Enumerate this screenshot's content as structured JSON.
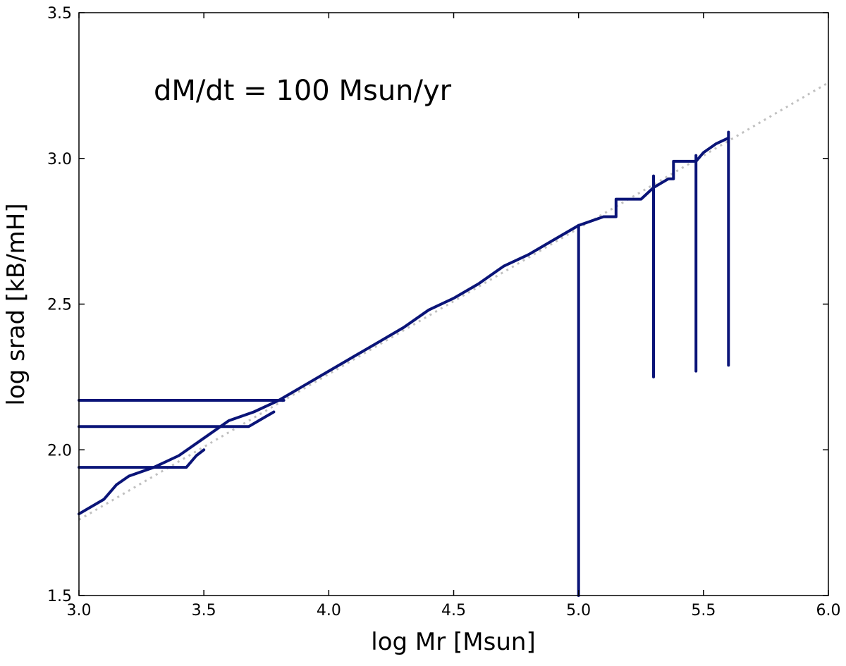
{
  "chart_data": {
    "type": "line",
    "title": "",
    "annotation": "dM/dt = 100 Msun/yr",
    "xlabel": "log Mr [Msun]",
    "ylabel": "log srad [kB/mH]",
    "xlim": [
      3.0,
      6.0
    ],
    "ylim": [
      1.5,
      3.5
    ],
    "xticks": [
      "3.0",
      "3.5",
      "4.0",
      "4.5",
      "5.0",
      "5.5",
      "6.0"
    ],
    "yticks": [
      "1.5",
      "2.0",
      "2.5",
      "3.0",
      "3.5"
    ],
    "grid": false,
    "legend": "none",
    "colors": {
      "profile": "#0a1478",
      "reference": "#c0c0c0"
    },
    "reference_line": {
      "style": "dotted",
      "x": [
        3.0,
        6.0
      ],
      "y": [
        1.76,
        3.26
      ]
    },
    "series": [
      {
        "style": "solid",
        "segments": [
          {
            "x": [
              3.0,
              3.1,
              3.15,
              3.2,
              3.3,
              3.4,
              3.5,
              3.6,
              3.7,
              3.8,
              3.9,
              4.0,
              4.1,
              4.2,
              4.3,
              4.4,
              4.5,
              4.6,
              4.7,
              4.8,
              4.9,
              5.0
            ],
            "y": [
              1.78,
              1.83,
              1.88,
              1.91,
              1.94,
              1.98,
              2.04,
              2.1,
              2.13,
              2.17,
              2.22,
              2.27,
              2.32,
              2.37,
              2.42,
              2.48,
              2.52,
              2.57,
              2.63,
              2.67,
              2.72,
              2.77
            ]
          },
          {
            "x": [
              5.0,
              5.0
            ],
            "y": [
              2.77,
              1.5
            ]
          },
          {
            "x": [
              5.0,
              5.1,
              5.15,
              5.15,
              5.25,
              5.3
            ],
            "y": [
              2.77,
              2.8,
              2.8,
              2.86,
              2.86,
              2.9
            ]
          },
          {
            "x": [
              5.3,
              5.3
            ],
            "y": [
              2.94,
              2.25
            ]
          },
          {
            "x": [
              5.3,
              5.36,
              5.38,
              5.38,
              5.47
            ],
            "y": [
              2.9,
              2.93,
              2.93,
              2.99,
              2.99
            ]
          },
          {
            "x": [
              5.47,
              5.47
            ],
            "y": [
              3.01,
              2.27
            ]
          },
          {
            "x": [
              5.47,
              5.5,
              5.55,
              5.6
            ],
            "y": [
              2.99,
              3.02,
              3.05,
              3.07
            ]
          },
          {
            "x": [
              5.6,
              5.6
            ],
            "y": [
              3.09,
              2.29
            ]
          },
          {
            "x": [
              3.0,
              3.82
            ],
            "y": [
              2.17,
              2.17
            ]
          },
          {
            "x": [
              3.0,
              3.68,
              3.72,
              3.78
            ],
            "y": [
              2.08,
              2.08,
              2.1,
              2.13
            ]
          },
          {
            "x": [
              3.0,
              3.43,
              3.47,
              3.5
            ],
            "y": [
              1.94,
              1.94,
              1.98,
              2.0
            ]
          }
        ]
      }
    ]
  }
}
